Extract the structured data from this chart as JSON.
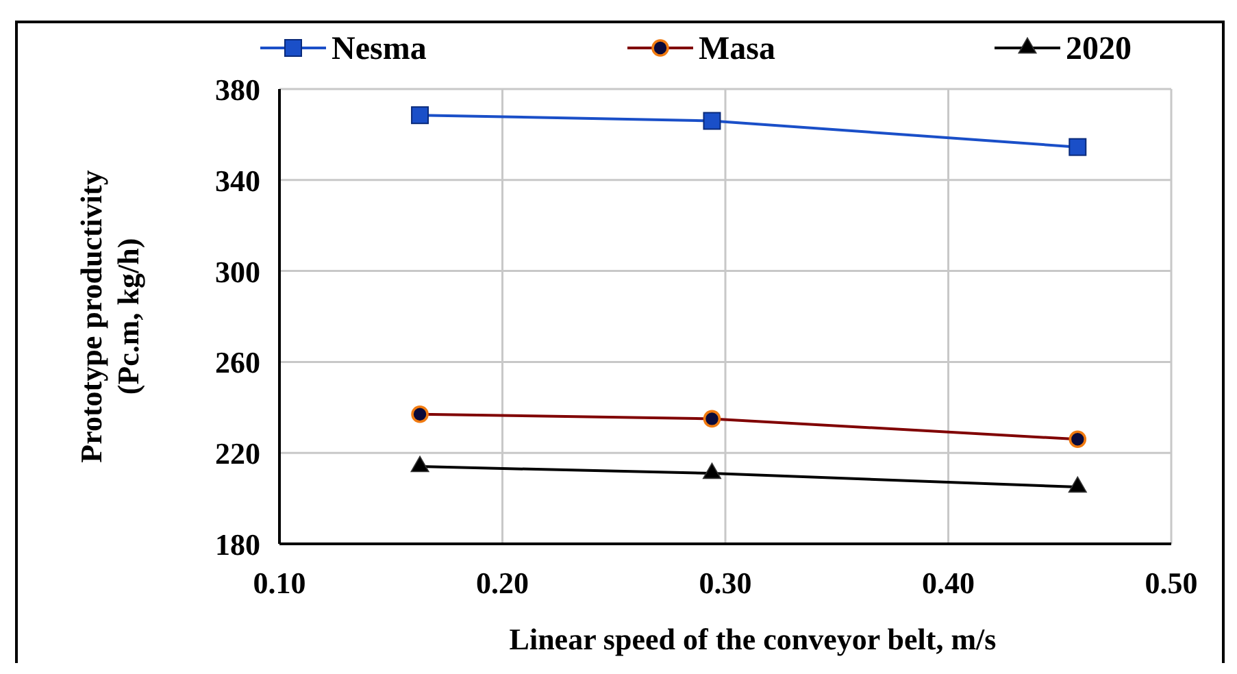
{
  "chart_data": {
    "type": "line",
    "xlabel": "Linear speed of the conveyor belt, m/s",
    "ylabel": "Prototype productivity\n(Pc.m, kg/h)",
    "xlim": [
      0.1,
      0.5
    ],
    "xticks": [
      {
        "value": 0.1,
        "label": "0.10"
      },
      {
        "value": 0.2,
        "label": "0.20"
      },
      {
        "value": 0.3,
        "label": "0.30"
      },
      {
        "value": 0.4,
        "label": "0.40"
      },
      {
        "value": 0.5,
        "label": "0.50"
      }
    ],
    "ylim": [
      180,
      380
    ],
    "yticks": [
      180,
      220,
      260,
      300,
      340,
      380
    ],
    "grid": true,
    "legend": "top",
    "line_style": "solid",
    "x": [
      0.163,
      0.294,
      0.458
    ],
    "series": [
      {
        "name": "Nesma",
        "color": "#1a4fc8",
        "marker": "square",
        "values": [
          368.5,
          366,
          354.5
        ]
      },
      {
        "name": "Masa",
        "color": "#800000",
        "marker": "circle",
        "values": [
          237,
          235,
          226
        ]
      },
      {
        "name": "2020",
        "color": "#000000",
        "marker": "triangle",
        "values": [
          214,
          211,
          205
        ]
      }
    ]
  }
}
